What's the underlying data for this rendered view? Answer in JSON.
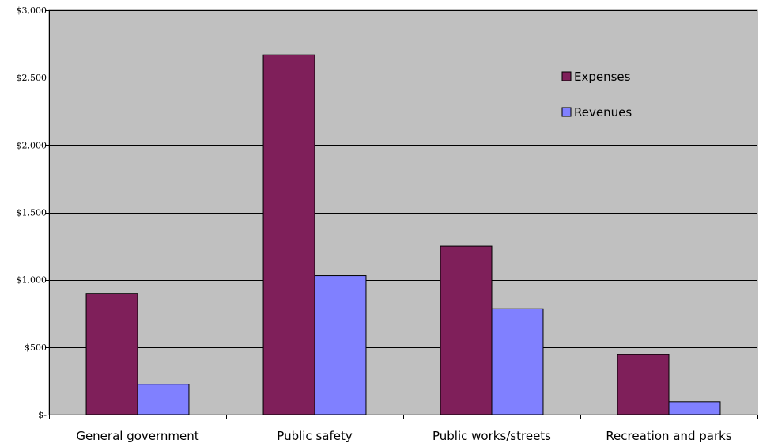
{
  "chart_data": {
    "type": "bar",
    "title": "",
    "xlabel": "",
    "ylabel": "",
    "categories": [
      "General government",
      "Public safety",
      "Public works/streets",
      "Recreation and parks"
    ],
    "series": [
      {
        "name": "Expenses",
        "values": [
          900,
          2670,
          1250,
          445
        ],
        "color": "#7f1f5a"
      },
      {
        "name": "Revenues",
        "values": [
          225,
          1030,
          785,
          95
        ],
        "color": "#8080ff"
      }
    ],
    "ylim": [
      0,
      3000
    ],
    "yticks": [
      0,
      500,
      1000,
      1500,
      2000,
      2500,
      3000
    ],
    "ytick_labels": [
      "$-",
      "$500",
      "$1,000",
      "$1,500",
      "$2,000",
      "$2,500",
      "$3,000"
    ],
    "grid": true,
    "plot_background": "#c0c0c0",
    "legend_position": "top-right"
  }
}
